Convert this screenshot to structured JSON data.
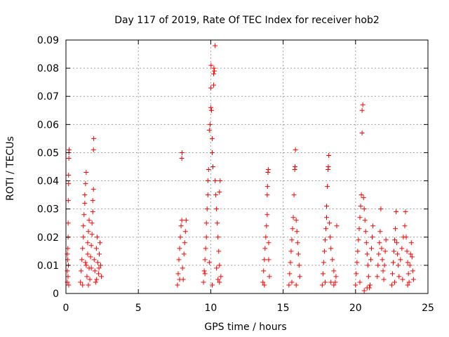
{
  "chart_data": {
    "type": "scatter",
    "title": "Day 117 of 2019, Rate Of TEC Index for receiver hob2",
    "xlabel": "GPS time / hours",
    "ylabel": "ROTI / TECUs",
    "xlim": [
      0,
      25
    ],
    "ylim": [
      0,
      0.09
    ],
    "xticks": [
      0,
      5,
      10,
      15,
      20,
      25
    ],
    "xtick_labels": [
      "0",
      "5",
      "10",
      "15",
      "20",
      "25"
    ],
    "yticks": [
      0,
      0.01,
      0.02,
      0.03,
      0.04,
      0.05,
      0.06,
      0.07,
      0.08,
      0.09
    ],
    "ytick_labels": [
      "0",
      "0.01",
      "0.02",
      "0.03",
      "0.04",
      "0.05",
      "0.06",
      "0.07",
      "0.08",
      "0.09"
    ],
    "grid": true,
    "marker": "+",
    "color": "#ff0000",
    "series": [
      {
        "name": "ROTI",
        "points": [
          [
            0.1,
            0.004
          ],
          [
            0.1,
            0.008
          ],
          [
            0.12,
            0.012
          ],
          [
            0.13,
            0.016
          ],
          [
            0.15,
            0.02
          ],
          [
            0.15,
            0.025
          ],
          [
            0.16,
            0.033
          ],
          [
            0.18,
            0.039
          ],
          [
            0.18,
            0.042
          ],
          [
            0.2,
            0.048
          ],
          [
            0.2,
            0.05
          ],
          [
            0.22,
            0.051
          ],
          [
            0.1,
            0.014
          ],
          [
            0.14,
            0.006
          ],
          [
            0.17,
            0.01
          ],
          [
            0.19,
            0.003
          ],
          [
            1.0,
            0.004
          ],
          [
            1.05,
            0.008
          ],
          [
            1.1,
            0.012
          ],
          [
            1.15,
            0.016
          ],
          [
            1.2,
            0.02
          ],
          [
            1.2,
            0.024
          ],
          [
            1.25,
            0.028
          ],
          [
            1.3,
            0.032
          ],
          [
            1.3,
            0.035
          ],
          [
            1.35,
            0.039
          ],
          [
            1.4,
            0.043
          ],
          [
            1.4,
            0.01
          ],
          [
            1.45,
            0.006
          ],
          [
            1.5,
            0.014
          ],
          [
            1.5,
            0.018
          ],
          [
            1.55,
            0.022
          ],
          [
            1.6,
            0.026
          ],
          [
            1.6,
            0.009
          ],
          [
            1.65,
            0.005
          ],
          [
            1.7,
            0.013
          ],
          [
            1.75,
            0.017
          ],
          [
            1.8,
            0.021
          ],
          [
            1.8,
            0.025
          ],
          [
            1.85,
            0.029
          ],
          [
            1.85,
            0.033
          ],
          [
            1.9,
            0.037
          ],
          [
            1.9,
            0.051
          ],
          [
            1.92,
            0.055
          ],
          [
            1.95,
            0.012
          ],
          [
            2.0,
            0.008
          ],
          [
            2.05,
            0.004
          ],
          [
            2.1,
            0.016
          ],
          [
            2.15,
            0.02
          ],
          [
            2.2,
            0.011
          ],
          [
            2.25,
            0.007
          ],
          [
            2.3,
            0.014
          ],
          [
            2.35,
            0.018
          ],
          [
            2.4,
            0.01
          ],
          [
            2.45,
            0.006
          ],
          [
            1.15,
            0.003
          ],
          [
            1.35,
            0.011
          ],
          [
            1.55,
            0.003
          ],
          [
            1.75,
            0.009
          ],
          [
            2.12,
            0.005
          ],
          [
            2.28,
            0.009
          ],
          [
            7.7,
            0.003
          ],
          [
            7.75,
            0.007
          ],
          [
            7.8,
            0.012
          ],
          [
            7.85,
            0.016
          ],
          [
            7.9,
            0.02
          ],
          [
            7.95,
            0.024
          ],
          [
            8.0,
            0.026
          ],
          [
            8.0,
            0.048
          ],
          [
            8.02,
            0.05
          ],
          [
            8.05,
            0.009
          ],
          [
            8.1,
            0.005
          ],
          [
            8.15,
            0.014
          ],
          [
            8.2,
            0.018
          ],
          [
            8.25,
            0.022
          ],
          [
            8.3,
            0.026
          ],
          [
            7.85,
            0.005
          ],
          [
            9.5,
            0.004
          ],
          [
            9.55,
            0.008
          ],
          [
            9.6,
            0.012
          ],
          [
            9.65,
            0.016
          ],
          [
            9.7,
            0.02
          ],
          [
            9.7,
            0.025
          ],
          [
            9.75,
            0.03
          ],
          [
            9.8,
            0.035
          ],
          [
            9.8,
            0.04
          ],
          [
            9.85,
            0.044
          ],
          [
            9.9,
            0.058
          ],
          [
            9.95,
            0.06
          ],
          [
            10.0,
            0.066
          ],
          [
            10.0,
            0.073
          ],
          [
            10.02,
            0.081
          ],
          [
            10.05,
            0.065
          ],
          [
            10.1,
            0.055
          ],
          [
            10.1,
            0.05
          ],
          [
            10.15,
            0.045
          ],
          [
            10.2,
            0.074
          ],
          [
            10.2,
            0.078
          ],
          [
            10.22,
            0.08
          ],
          [
            10.25,
            0.079
          ],
          [
            10.3,
            0.088
          ],
          [
            10.3,
            0.04
          ],
          [
            10.35,
            0.035
          ],
          [
            10.4,
            0.03
          ],
          [
            10.45,
            0.025
          ],
          [
            10.5,
            0.02
          ],
          [
            10.55,
            0.015
          ],
          [
            10.6,
            0.01
          ],
          [
            10.6,
            0.036
          ],
          [
            10.65,
            0.04
          ],
          [
            10.7,
            0.006
          ],
          [
            9.6,
            0.007
          ],
          [
            9.9,
            0.011
          ],
          [
            10.1,
            0.003
          ],
          [
            10.4,
            0.009
          ],
          [
            10.5,
            0.005
          ],
          [
            10.6,
            0.004
          ],
          [
            13.6,
            0.004
          ],
          [
            13.65,
            0.008
          ],
          [
            13.7,
            0.012
          ],
          [
            13.75,
            0.016
          ],
          [
            13.8,
            0.02
          ],
          [
            13.85,
            0.024
          ],
          [
            13.9,
            0.028
          ],
          [
            13.9,
            0.035
          ],
          [
            13.92,
            0.038
          ],
          [
            13.95,
            0.043
          ],
          [
            13.97,
            0.044
          ],
          [
            14.0,
            0.012
          ],
          [
            14.05,
            0.006
          ],
          [
            13.7,
            0.003
          ],
          [
            14.0,
            0.018
          ],
          [
            15.4,
            0.003
          ],
          [
            15.45,
            0.007
          ],
          [
            15.5,
            0.011
          ],
          [
            15.55,
            0.015
          ],
          [
            15.6,
            0.019
          ],
          [
            15.65,
            0.023
          ],
          [
            15.7,
            0.027
          ],
          [
            15.75,
            0.035
          ],
          [
            15.8,
            0.044
          ],
          [
            15.82,
            0.045
          ],
          [
            15.85,
            0.051
          ],
          [
            15.9,
            0.026
          ],
          [
            15.95,
            0.022
          ],
          [
            16.0,
            0.018
          ],
          [
            16.05,
            0.014
          ],
          [
            16.1,
            0.01
          ],
          [
            16.15,
            0.006
          ],
          [
            15.6,
            0.004
          ],
          [
            15.9,
            0.003
          ],
          [
            17.7,
            0.003
          ],
          [
            17.75,
            0.007
          ],
          [
            17.8,
            0.011
          ],
          [
            17.85,
            0.015
          ],
          [
            17.9,
            0.019
          ],
          [
            17.95,
            0.023
          ],
          [
            18.0,
            0.027
          ],
          [
            18.0,
            0.031
          ],
          [
            18.05,
            0.038
          ],
          [
            18.1,
            0.044
          ],
          [
            18.12,
            0.045
          ],
          [
            18.15,
            0.049
          ],
          [
            18.2,
            0.025
          ],
          [
            18.25,
            0.02
          ],
          [
            18.3,
            0.016
          ],
          [
            18.4,
            0.012
          ],
          [
            18.5,
            0.008
          ],
          [
            18.6,
            0.004
          ],
          [
            18.7,
            0.024
          ],
          [
            18.65,
            0.006
          ],
          [
            17.9,
            0.004
          ],
          [
            18.3,
            0.004
          ],
          [
            18.5,
            0.003
          ],
          [
            20.0,
            0.003
          ],
          [
            20.05,
            0.007
          ],
          [
            20.1,
            0.011
          ],
          [
            20.15,
            0.015
          ],
          [
            20.2,
            0.019
          ],
          [
            20.25,
            0.023
          ],
          [
            20.3,
            0.027
          ],
          [
            20.35,
            0.031
          ],
          [
            20.4,
            0.035
          ],
          [
            20.45,
            0.057
          ],
          [
            20.45,
            0.065
          ],
          [
            20.5,
            0.067
          ],
          [
            20.55,
            0.034
          ],
          [
            20.6,
            0.03
          ],
          [
            20.65,
            0.026
          ],
          [
            20.7,
            0.022
          ],
          [
            20.75,
            0.018
          ],
          [
            20.8,
            0.014
          ],
          [
            20.85,
            0.01
          ],
          [
            20.9,
            0.006
          ],
          [
            20.95,
            0.002
          ],
          [
            21.0,
            0.003
          ],
          [
            21.05,
            0.012
          ],
          [
            21.1,
            0.016
          ],
          [
            21.15,
            0.02
          ],
          [
            21.2,
            0.024
          ],
          [
            20.8,
            0.002
          ],
          [
            20.6,
            0.001
          ],
          [
            20.3,
            0.004
          ],
          [
            21.5,
            0.006
          ],
          [
            21.55,
            0.01
          ],
          [
            21.6,
            0.014
          ],
          [
            21.65,
            0.018
          ],
          [
            21.7,
            0.022
          ],
          [
            21.75,
            0.03
          ],
          [
            21.8,
            0.016
          ],
          [
            21.85,
            0.012
          ],
          [
            21.9,
            0.008
          ],
          [
            21.95,
            0.005
          ],
          [
            22.0,
            0.01
          ],
          [
            22.05,
            0.015
          ],
          [
            22.1,
            0.019
          ],
          [
            22.5,
            0.003
          ],
          [
            22.55,
            0.007
          ],
          [
            22.6,
            0.011
          ],
          [
            22.65,
            0.015
          ],
          [
            22.7,
            0.019
          ],
          [
            22.75,
            0.023
          ],
          [
            22.8,
            0.029
          ],
          [
            22.85,
            0.018
          ],
          [
            22.9,
            0.014
          ],
          [
            22.95,
            0.01
          ],
          [
            23.0,
            0.006
          ],
          [
            23.1,
            0.012
          ],
          [
            23.2,
            0.016
          ],
          [
            23.3,
            0.02
          ],
          [
            23.4,
            0.024
          ],
          [
            23.45,
            0.029
          ],
          [
            23.5,
            0.02
          ],
          [
            23.55,
            0.015
          ],
          [
            23.6,
            0.011
          ],
          [
            23.65,
            0.007
          ],
          [
            23.7,
            0.004
          ],
          [
            23.75,
            0.01
          ],
          [
            23.8,
            0.014
          ],
          [
            23.85,
            0.018
          ],
          [
            23.9,
            0.013
          ],
          [
            23.95,
            0.008
          ],
          [
            24.0,
            0.005
          ],
          [
            22.7,
            0.004
          ],
          [
            23.25,
            0.005
          ],
          [
            23.6,
            0.003
          ]
        ]
      }
    ]
  }
}
